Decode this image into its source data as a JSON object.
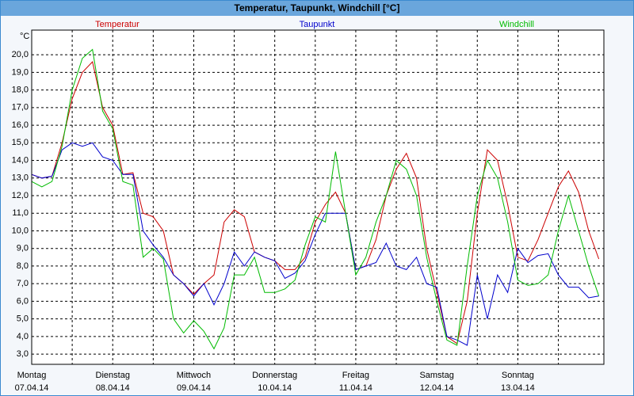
{
  "chart_data": {
    "type": "line",
    "title": "Temperatur, Taupunkt, Windchill [°C]",
    "y_unit_label": "°C",
    "x": [
      0,
      3,
      6,
      9,
      12,
      15,
      18,
      21,
      24,
      27,
      30,
      33,
      36,
      39,
      42,
      45,
      48,
      51,
      54,
      57,
      60,
      63,
      66,
      69,
      72,
      75,
      78,
      81,
      84,
      87,
      90,
      93,
      96,
      99,
      102,
      105,
      108,
      111,
      114,
      117,
      120,
      123,
      126,
      129,
      132,
      135,
      138,
      141,
      144,
      147,
      150,
      153,
      156,
      159,
      162,
      165,
      168
    ],
    "series": [
      {
        "name": "Temperatur",
        "color": "#cc0000",
        "values": [
          13.2,
          13.0,
          13.1,
          15.0,
          17.5,
          19.0,
          19.6,
          17.0,
          16.0,
          13.2,
          13.3,
          11.0,
          10.8,
          10.0,
          7.5,
          7.0,
          6.4,
          7.0,
          7.5,
          10.5,
          11.2,
          10.8,
          8.8,
          8.5,
          8.3,
          7.8,
          7.8,
          8.5,
          10.5,
          11.5,
          12.2,
          11.0,
          7.8,
          8.0,
          9.5,
          12.0,
          13.5,
          14.4,
          13.0,
          9.0,
          6.5,
          4.0,
          3.6,
          6.0,
          11.0,
          14.6,
          14.0,
          11.5,
          8.5,
          8.3,
          9.5,
          11.0,
          12.5,
          13.4,
          12.2,
          10.0,
          8.4
        ]
      },
      {
        "name": "Taupunkt",
        "color": "#0000cc",
        "values": [
          13.2,
          13.0,
          13.1,
          14.6,
          15.0,
          14.8,
          15.0,
          14.2,
          14.0,
          13.2,
          13.2,
          10.0,
          9.2,
          8.5,
          7.5,
          7.0,
          6.3,
          7.0,
          5.8,
          7.0,
          8.8,
          8.0,
          8.8,
          8.5,
          8.3,
          7.3,
          7.6,
          8.3,
          9.8,
          11.0,
          11.0,
          11.0,
          7.8,
          8.0,
          8.2,
          9.3,
          8.0,
          7.8,
          8.5,
          7.0,
          6.8,
          4.0,
          3.8,
          3.5,
          7.5,
          5.0,
          7.5,
          6.5,
          9.0,
          8.2,
          8.6,
          8.7,
          7.5,
          6.8,
          6.8,
          6.2,
          6.3
        ]
      },
      {
        "name": "Windchill",
        "color": "#00bb00",
        "values": [
          12.8,
          12.5,
          12.8,
          14.8,
          18.0,
          19.8,
          20.3,
          16.8,
          15.8,
          12.8,
          12.6,
          8.5,
          9.0,
          8.4,
          5.0,
          4.2,
          4.9,
          4.3,
          3.3,
          4.5,
          7.5,
          7.5,
          8.5,
          6.5,
          6.5,
          6.7,
          7.2,
          9.2,
          10.8,
          10.5,
          14.5,
          11.0,
          7.5,
          8.5,
          10.5,
          12.0,
          14.0,
          13.5,
          12.0,
          8.5,
          6.0,
          3.8,
          3.5,
          8.0,
          12.0,
          14.0,
          13.0,
          10.5,
          7.2,
          6.9,
          7.0,
          7.5,
          10.0,
          12.0,
          10.0,
          8.0,
          6.3
        ]
      }
    ],
    "xlim": [
      0,
      169.5
    ],
    "xticks": [
      {
        "value": 0,
        "label": "Montag"
      },
      {
        "value": 24,
        "label": "Dienstag"
      },
      {
        "value": 48,
        "label": "Mittwoch"
      },
      {
        "value": 72,
        "label": "Donnerstag"
      },
      {
        "value": 96,
        "label": "Freitag"
      },
      {
        "value": 120,
        "label": "Samstag"
      },
      {
        "value": 144,
        "label": "Sonntag"
      }
    ],
    "xtick_dates": [
      "07.04.14",
      "08.04.14",
      "09.04.14",
      "10.04.14",
      "11.04.14",
      "12.04.14",
      "13.04.14"
    ],
    "minor_xticks": [
      12,
      36,
      60,
      84,
      108,
      132,
      156
    ],
    "ylim": [
      2.42,
      21.4
    ],
    "yticks": [
      {
        "value": 3,
        "label": "3,0"
      },
      {
        "value": 4,
        "label": "4,0"
      },
      {
        "value": 5,
        "label": "5,0"
      },
      {
        "value": 6,
        "label": "6,0"
      },
      {
        "value": 7,
        "label": "7,0"
      },
      {
        "value": 8,
        "label": "8,0"
      },
      {
        "value": 9,
        "label": "9,0"
      },
      {
        "value": 10,
        "label": "10,0"
      },
      {
        "value": 11,
        "label": "11,0"
      },
      {
        "value": 12,
        "label": "12,0"
      },
      {
        "value": 13,
        "label": "13,0"
      },
      {
        "value": 14,
        "label": "14,0"
      },
      {
        "value": 15,
        "label": "15,0"
      },
      {
        "value": 16,
        "label": "16,0"
      },
      {
        "value": 17,
        "label": "17,0"
      },
      {
        "value": 18,
        "label": "18,0"
      },
      {
        "value": 19,
        "label": "19,0"
      },
      {
        "value": 20,
        "label": "20,0"
      }
    ],
    "grid": true
  }
}
